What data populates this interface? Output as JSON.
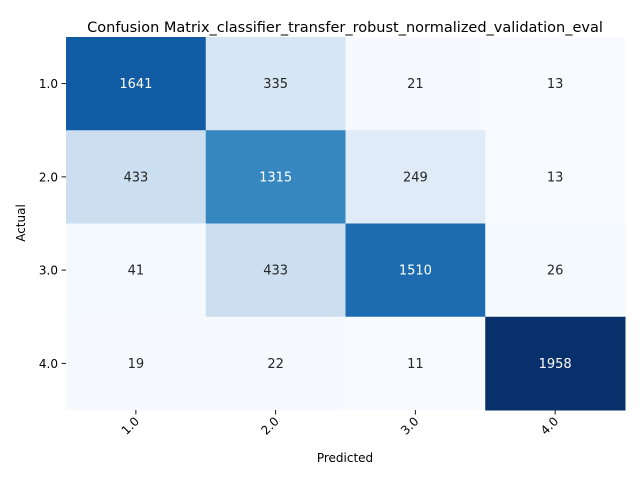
{
  "chart_data": {
    "type": "heatmap",
    "title": "Confusion Matrix_classifier_transfer_robust_normalized_validation_eval",
    "xlabel": "Predicted",
    "ylabel": "Actual",
    "x_categories": [
      "1.0",
      "2.0",
      "3.0",
      "4.0"
    ],
    "y_categories": [
      "1.0",
      "2.0",
      "3.0",
      "4.0"
    ],
    "values": [
      [
        1641,
        335,
        21,
        13
      ],
      [
        433,
        1315,
        249,
        13
      ],
      [
        41,
        433,
        1510,
        26
      ],
      [
        19,
        22,
        11,
        1958
      ]
    ],
    "colormap": "Blues",
    "colorbar": false,
    "value_range": [
      11,
      1958
    ]
  }
}
